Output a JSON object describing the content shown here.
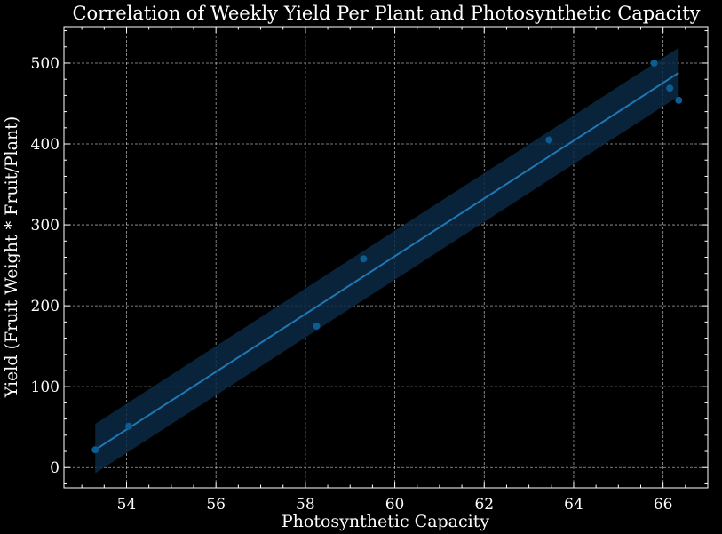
{
  "chart_data": {
    "type": "scatter",
    "title": "Correlation of Weekly Yield Per Plant and Photosynthetic Capacity",
    "xlabel": "Photosynthetic Capacity",
    "ylabel": "Yield (Fruit Weight * Fruit/Plant)",
    "xlim": [
      52.6,
      67.0
    ],
    "ylim": [
      -25,
      545
    ],
    "x_ticks": [
      54,
      56,
      58,
      60,
      62,
      64,
      66
    ],
    "y_ticks": [
      0,
      100,
      200,
      300,
      400,
      500
    ],
    "grid": true,
    "series": [
      {
        "points": [
          {
            "x": 53.3,
            "y": 22
          },
          {
            "x": 54.05,
            "y": 51
          },
          {
            "x": 58.25,
            "y": 175
          },
          {
            "x": 59.3,
            "y": 258
          },
          {
            "x": 63.45,
            "y": 405
          },
          {
            "x": 65.8,
            "y": 500
          },
          {
            "x": 66.15,
            "y": 469
          },
          {
            "x": 66.35,
            "y": 454
          }
        ]
      }
    ],
    "regression": {
      "x_start": 53.3,
      "y_start": 22,
      "x_end": 66.35,
      "y_end": 488,
      "ci_start": [
        -7,
        54
      ],
      "ci_end": [
        459,
        519
      ]
    },
    "colors": {
      "background": "#000000",
      "marker": "#0b5d93",
      "line": "#1f77b4",
      "band": "#0a2a44"
    }
  }
}
